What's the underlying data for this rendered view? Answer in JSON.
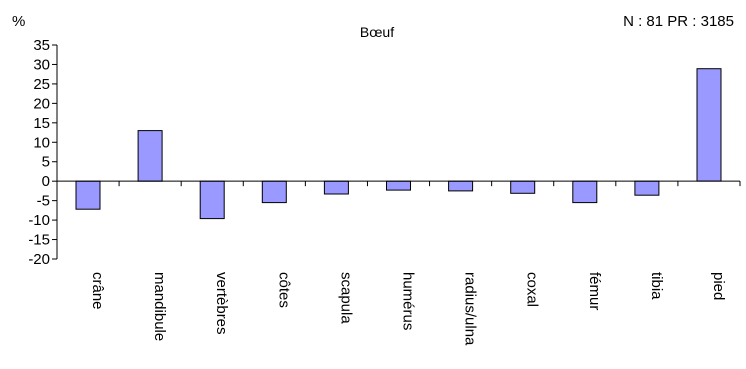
{
  "chart_data": {
    "type": "bar",
    "title": "Bœuf",
    "annotation": "N : 81 PR : 3185",
    "ylabel": "%",
    "xlabel": "",
    "ylim": [
      -20,
      35
    ],
    "yticks": [
      35,
      30,
      25,
      20,
      15,
      10,
      5,
      0,
      -5,
      -10,
      -15,
      -20
    ],
    "categories": [
      "crâne",
      "mandibule",
      "vertèbres",
      "côtes",
      "scapula",
      "humérus",
      "radius/ulna",
      "coxal",
      "fémur",
      "tibia",
      "pied"
    ],
    "values": [
      -7.2,
      13.0,
      -9.6,
      -5.5,
      -3.3,
      -2.3,
      -2.5,
      -3.1,
      -5.5,
      -3.6,
      28.9
    ],
    "bar_color": "#9999ff",
    "grid": false,
    "legend": "none"
  }
}
